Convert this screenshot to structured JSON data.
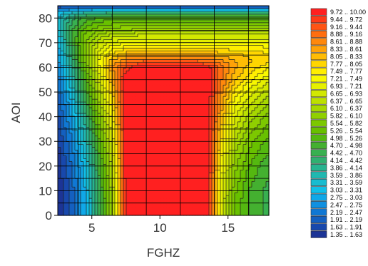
{
  "chart_data": {
    "type": "heatmap",
    "subtype": "filled-contour",
    "xlabel": "FGHZ",
    "ylabel": "AOI",
    "xlim": [
      2.5,
      18
    ],
    "ylim": [
      0,
      85
    ],
    "xticks": [
      5,
      10,
      15
    ],
    "yticks": [
      0,
      10,
      20,
      30,
      40,
      50,
      60,
      70,
      80
    ],
    "grid": true,
    "legend_position": "right",
    "grid_x": [
      2.5,
      3.5,
      4.5,
      5.5,
      6.5,
      7.5,
      8.5,
      9.5,
      10.5,
      11.5,
      12.5,
      13.5,
      14.5,
      15.5,
      16.5,
      17.5,
      18.0
    ],
    "grid_y": [
      0,
      5,
      10,
      15,
      20,
      25,
      30,
      35,
      40,
      45,
      50,
      55,
      60,
      62,
      65,
      70,
      75,
      80,
      82,
      85
    ],
    "z": [
      [
        1.4,
        2.0,
        3.0,
        4.4,
        6.2,
        10.0,
        10.0,
        10.0,
        10.0,
        10.0,
        10.0,
        10.0,
        7.0,
        5.5,
        5.0,
        4.7,
        4.6
      ],
      [
        1.4,
        2.0,
        3.0,
        4.4,
        6.2,
        10.0,
        10.0,
        10.0,
        10.0,
        10.0,
        10.0,
        10.0,
        7.0,
        5.5,
        5.0,
        4.7,
        4.6
      ],
      [
        1.4,
        2.0,
        3.0,
        4.5,
        6.3,
        10.0,
        10.0,
        10.0,
        10.0,
        10.0,
        10.0,
        10.0,
        7.1,
        5.6,
        5.0,
        4.7,
        4.6
      ],
      [
        1.4,
        2.1,
        3.1,
        4.6,
        6.4,
        10.0,
        10.0,
        10.0,
        10.0,
        10.0,
        10.0,
        10.0,
        7.2,
        5.8,
        5.1,
        4.8,
        4.7
      ],
      [
        1.5,
        2.2,
        3.2,
        4.7,
        6.5,
        10.0,
        10.0,
        10.0,
        10.0,
        10.0,
        10.0,
        10.0,
        7.4,
        5.9,
        5.3,
        4.9,
        4.8
      ],
      [
        1.5,
        2.3,
        3.4,
        4.9,
        6.7,
        10.0,
        10.0,
        10.0,
        10.0,
        10.0,
        10.0,
        10.0,
        7.6,
        6.1,
        5.5,
        5.1,
        5.0
      ],
      [
        1.6,
        2.4,
        3.6,
        5.1,
        6.9,
        10.0,
        10.0,
        10.0,
        10.0,
        10.0,
        10.0,
        10.0,
        7.8,
        6.4,
        5.7,
        5.3,
        5.2
      ],
      [
        1.7,
        2.6,
        3.8,
        5.4,
        7.1,
        10.0,
        10.0,
        10.0,
        10.0,
        10.0,
        10.0,
        10.0,
        8.0,
        6.7,
        6.0,
        5.6,
        5.4
      ],
      [
        1.8,
        2.8,
        4.1,
        5.7,
        7.4,
        10.0,
        10.0,
        10.0,
        10.0,
        10.0,
        10.0,
        10.0,
        8.3,
        7.0,
        6.3,
        5.9,
        5.7
      ],
      [
        1.9,
        3.0,
        4.4,
        6.0,
        7.7,
        10.0,
        10.0,
        10.0,
        10.0,
        10.0,
        10.0,
        10.0,
        8.5,
        7.3,
        6.7,
        6.3,
        6.1
      ],
      [
        2.1,
        3.3,
        4.7,
        6.3,
        8.0,
        10.0,
        10.0,
        10.0,
        10.0,
        10.0,
        10.0,
        10.0,
        8.7,
        7.7,
        7.1,
        6.7,
        6.5
      ],
      [
        2.3,
        3.6,
        5.0,
        6.7,
        8.3,
        10.0,
        10.0,
        10.0,
        10.0,
        10.0,
        10.0,
        10.0,
        8.9,
        8.1,
        7.6,
        7.2,
        7.0
      ],
      [
        2.5,
        3.9,
        5.4,
        7.1,
        8.6,
        9.6,
        10.0,
        10.0,
        10.0,
        10.0,
        10.0,
        9.9,
        9.0,
        8.4,
        8.0,
        7.7,
        7.5
      ],
      [
        2.6,
        4.1,
        5.6,
        7.2,
        8.4,
        9.0,
        9.3,
        9.4,
        9.4,
        9.4,
        9.4,
        9.2,
        8.8,
        8.4,
        8.1,
        7.9,
        7.8
      ],
      [
        2.7,
        4.3,
        5.8,
        7.1,
        7.9,
        8.3,
        8.5,
        8.5,
        8.5,
        8.5,
        8.5,
        8.4,
        8.2,
        8.1,
        8.0,
        7.9,
        7.8
      ],
      [
        3.0,
        4.6,
        5.8,
        6.6,
        7.0,
        7.2,
        7.3,
        7.3,
        7.3,
        7.3,
        7.3,
        7.3,
        7.3,
        7.3,
        7.3,
        7.3,
        7.3
      ],
      [
        3.3,
        4.6,
        5.4,
        5.8,
        6.0,
        6.1,
        6.2,
        6.2,
        6.2,
        6.2,
        6.2,
        6.2,
        6.2,
        6.2,
        6.2,
        6.2,
        6.2
      ],
      [
        3.3,
        4.3,
        4.8,
        5.0,
        5.1,
        5.2,
        5.2,
        5.2,
        5.2,
        5.2,
        5.2,
        5.2,
        5.2,
        5.2,
        5.2,
        5.2,
        5.2
      ],
      [
        3.1,
        3.7,
        4.0,
        4.2,
        4.3,
        4.3,
        4.3,
        4.3,
        4.3,
        4.3,
        4.3,
        4.3,
        4.3,
        4.3,
        4.3,
        4.3,
        4.3
      ],
      [
        1.6,
        1.6,
        1.6,
        1.6,
        1.6,
        1.6,
        1.6,
        1.6,
        1.6,
        1.6,
        1.6,
        1.6,
        1.6,
        1.6,
        1.6,
        1.6,
        1.6
      ]
    ],
    "legend": [
      {
        "label": "9.72 .. 10.00",
        "color": "#ff2020"
      },
      {
        "label": "9.44 ..  9.72",
        "color": "#ff3a18"
      },
      {
        "label": "9.16 ..  9.44",
        "color": "#ff5414"
      },
      {
        "label": "8.88 ..  9.16",
        "color": "#ff6e10"
      },
      {
        "label": "8.61 ..  8.88",
        "color": "#ff880c"
      },
      {
        "label": "8.33 ..  8.61",
        "color": "#ffa208"
      },
      {
        "label": "8.05 ..  8.33",
        "color": "#ffbc04"
      },
      {
        "label": "7.77 ..  8.05",
        "color": "#ffd600"
      },
      {
        "label": "7.49 ..  7.77",
        "color": "#ffee00"
      },
      {
        "label": "7.21 ..  7.49",
        "color": "#f8f800"
      },
      {
        "label": "6.93 ..  7.21",
        "color": "#e6f000"
      },
      {
        "label": "6.65 ..  6.93",
        "color": "#d2e800"
      },
      {
        "label": "6.37 ..  6.65",
        "color": "#bce000"
      },
      {
        "label": "6.10 ..  6.37",
        "color": "#a6d800"
      },
      {
        "label": "5.82 ..  6.10",
        "color": "#90d000"
      },
      {
        "label": "5.54 ..  5.82",
        "color": "#7cc800"
      },
      {
        "label": "5.26 ..  5.54",
        "color": "#68c000"
      },
      {
        "label": "4.98 ..  5.26",
        "color": "#54b810"
      },
      {
        "label": "4.70 ..  4.98",
        "color": "#44b030"
      },
      {
        "label": "4.42 ..  4.70",
        "color": "#38b050"
      },
      {
        "label": "4.14 ..  4.42",
        "color": "#30b070"
      },
      {
        "label": "3.86 ..  4.14",
        "color": "#28b490"
      },
      {
        "label": "3.59 ..  3.86",
        "color": "#20b8b0"
      },
      {
        "label": "3.31 ..  3.59",
        "color": "#18bcd0"
      },
      {
        "label": "3.03 ..  3.31",
        "color": "#10c0e8"
      },
      {
        "label": "2.75 ..  3.03",
        "color": "#10a8e8"
      },
      {
        "label": "2.47 ..  2.75",
        "color": "#1090e0"
      },
      {
        "label": "2.19 ..  2.47",
        "color": "#1078d4"
      },
      {
        "label": "1.91 ..  2.19",
        "color": "#1460c0"
      },
      {
        "label": "1.63 ..  1.91",
        "color": "#1848ac"
      },
      {
        "label": "1.35 ..  1.63",
        "color": "#1c3496"
      }
    ]
  }
}
